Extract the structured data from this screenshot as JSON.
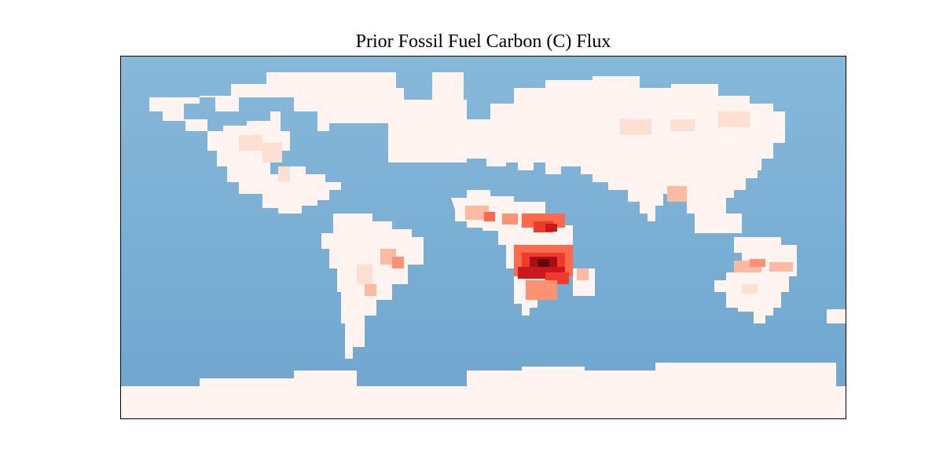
{
  "title": "Prior Fossil Fuel Carbon (C) Flux",
  "map": {
    "projection": "equirectangular",
    "colormap": "Reds",
    "colors": {
      "ocean": "#78aed3",
      "ocean_deep": "#6a9fc8",
      "flux_min": "#fff4f0",
      "flux_max": "#67000d",
      "frame": "#000000"
    },
    "flux_levels": [
      0,
      0.15,
      0.35,
      0.6,
      0.85,
      1.0
    ]
  }
}
